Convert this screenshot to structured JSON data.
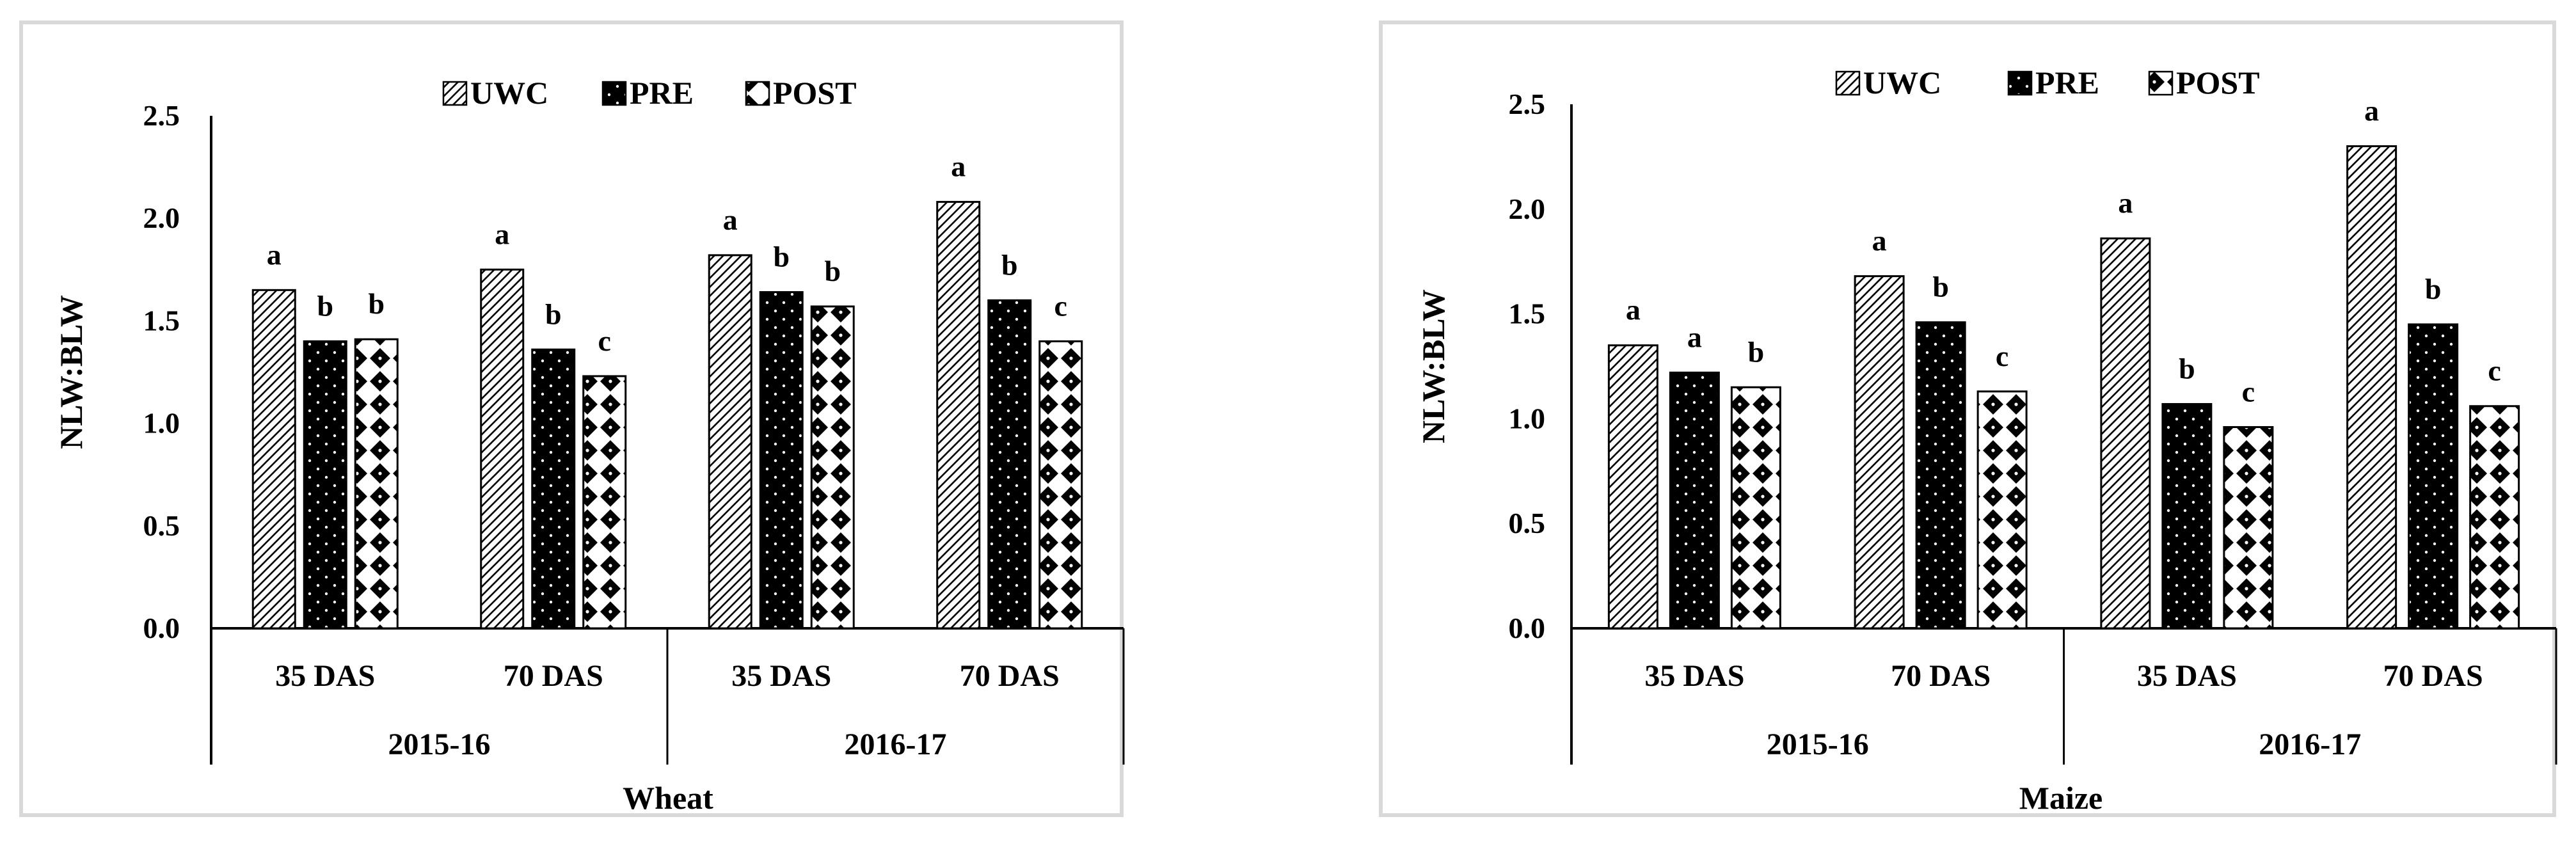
{
  "chart_data": [
    {
      "type": "bar",
      "title": "",
      "xlabel": "Wheat",
      "ylabel": "NLW:BLW",
      "ylim": [
        0,
        2.5
      ],
      "yticks": [
        "0.0",
        "0.5",
        "1.0",
        "1.5",
        "2.0",
        "2.5"
      ],
      "categories": [
        "35 DAS",
        "70 DAS",
        "35 DAS",
        "70 DAS"
      ],
      "groups": [
        {
          "label": "2015-16"
        },
        {
          "label": "2016-17"
        }
      ],
      "legend_position": "top",
      "series": [
        {
          "name": "UWC",
          "values": [
            1.65,
            1.75,
            1.82,
            2.08
          ],
          "letters": [
            "a",
            "a",
            "a",
            "a"
          ]
        },
        {
          "name": "PRE",
          "values": [
            1.4,
            1.36,
            1.64,
            1.6
          ],
          "letters": [
            "b",
            "b",
            "b",
            "b"
          ]
        },
        {
          "name": "POST",
          "values": [
            1.41,
            1.23,
            1.57,
            1.4
          ],
          "letters": [
            "b",
            "c",
            "b",
            "c"
          ]
        }
      ]
    },
    {
      "type": "bar",
      "title": "",
      "xlabel": "Maize",
      "ylabel": "NLW:BLW",
      "ylim": [
        0,
        2.5
      ],
      "yticks": [
        "0.0",
        "0.5",
        "1.0",
        "1.5",
        "2.0",
        "2.5"
      ],
      "categories": [
        "35 DAS",
        "70 DAS",
        "35 DAS",
        "70 DAS"
      ],
      "groups": [
        {
          "label": "2015-16"
        },
        {
          "label": "2016-17"
        }
      ],
      "legend_position": "top",
      "series": [
        {
          "name": "UWC",
          "values": [
            1.35,
            1.68,
            1.86,
            2.3
          ],
          "letters": [
            "a",
            "a",
            "a",
            "a"
          ]
        },
        {
          "name": "PRE",
          "values": [
            1.22,
            1.46,
            1.07,
            1.45
          ],
          "letters": [
            "a",
            "b",
            "b",
            "b"
          ]
        },
        {
          "name": "POST",
          "values": [
            1.15,
            1.13,
            0.96,
            1.06
          ],
          "letters": [
            "b",
            "c",
            "c",
            "c"
          ]
        }
      ]
    }
  ]
}
